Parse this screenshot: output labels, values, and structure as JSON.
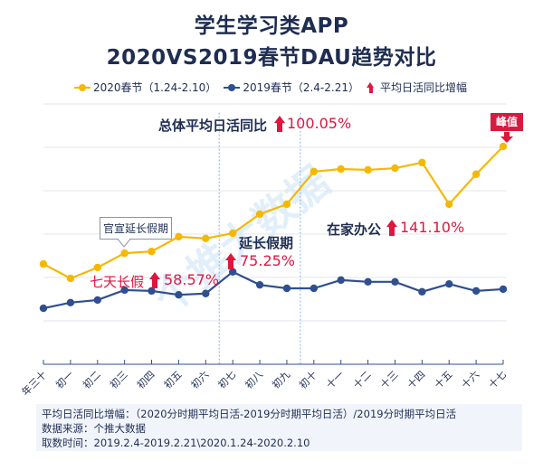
{
  "title": {
    "line1": "学生学习类APP",
    "line2": "2020VS2019春节DAU趋势对比"
  },
  "legend": [
    {
      "label": "2020春节（1.24-2.10）",
      "color": "#f5b800"
    },
    {
      "label": "2019春节（2.4-2.21）",
      "color": "#2f4f8f"
    },
    {
      "label": "平均日活同比增幅",
      "color": "#e0163f",
      "icon": "red-up-arrow"
    }
  ],
  "annotations": {
    "overall_label": "总体平均日活同比",
    "overall_value": "100.05%",
    "peak": "峰值",
    "announce": "官宣延长假期",
    "extended_label": "延长假期",
    "extended_value": "75.25%",
    "seven_day_label": "七天长假",
    "seven_day_value": "58.57%",
    "wfh_label": "在家办公",
    "wfh_value": "141.10%"
  },
  "watermark": "个推大数据",
  "footer": {
    "formula": "平均日活同比增幅：（2020分时期平均日活-2019分时期平均日活）/2019分时期平均日活",
    "source": "数据来源：个推大数据",
    "period": "取数时间：2019.2.4-2019.2.21\\2020.1.24-2020.2.10"
  },
  "chart_data": {
    "type": "line",
    "categories": [
      "年三十",
      "初一",
      "初二",
      "初三",
      "初四",
      "初五",
      "初六",
      "初七",
      "初八",
      "初九",
      "初十",
      "十一",
      "十二",
      "十三",
      "十四",
      "十五",
      "十六",
      "十七"
    ],
    "series": [
      {
        "name": "2020春节（1.24-2.10）",
        "color": "#f5b800",
        "values": [
          2.31,
          1.98,
          2.23,
          2.56,
          2.6,
          2.94,
          2.9,
          3.02,
          3.46,
          3.69,
          4.44,
          4.5,
          4.48,
          4.52,
          4.65,
          3.69,
          4.38,
          5.02
        ]
      },
      {
        "name": "2019春节（2.4-2.21）",
        "color": "#2f4f8f",
        "values": [
          1.29,
          1.42,
          1.48,
          1.71,
          1.69,
          1.6,
          1.63,
          2.13,
          1.83,
          1.75,
          1.75,
          1.94,
          1.9,
          1.9,
          1.67,
          1.85,
          1.69,
          1.73
        ]
      }
    ],
    "ylim": [
      0,
      6
    ],
    "y_tick_labels_shown": false,
    "grid": true,
    "period_dividers_after": [
      "初六",
      "初九"
    ],
    "legend_position": "top"
  }
}
